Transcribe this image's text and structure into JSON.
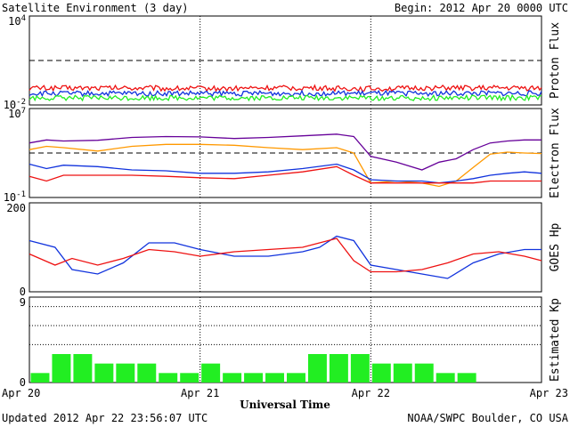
{
  "title": "Satellite Environment (3 day)",
  "begin_label": "Begin:  2012 Apr 20 0000 UTC",
  "xlabel": "Universal Time",
  "updated": "Updated 2012 Apr 22 23:56:07 UTC",
  "credit": "NOAA/SWPC Boulder, CO USA",
  "x_ticks": [
    "Apr 20",
    "Apr 21",
    "Apr 22",
    "Apr 23"
  ],
  "colors": {
    "red": "#ee1111",
    "blue": "#1133dd",
    "green": "#22ee22",
    "orange": "#ff9900",
    "purple": "#660099",
    "bar": "#22ee22"
  },
  "chart_data": [
    {
      "type": "line",
      "panel": "proton",
      "ylabel": "Proton Flux",
      "scale": "log",
      "ylim": [
        0.01,
        10000
      ],
      "ytick_labels": [
        {
          "base": "10",
          "exp": "4"
        },
        {
          "base": "10",
          "exp": "-2"
        }
      ],
      "threshold": 10,
      "x_days": [
        0,
        0.5,
        1,
        1.5,
        2,
        2.5,
        3
      ],
      "series": [
        {
          "color": "red",
          "values": [
            0.14,
            0.14,
            0.13,
            0.14,
            0.13,
            0.14,
            0.14
          ]
        },
        {
          "color": "blue",
          "values": [
            0.06,
            0.06,
            0.06,
            0.06,
            0.06,
            0.06,
            0.06
          ]
        },
        {
          "color": "green",
          "values": [
            0.03,
            0.03,
            0.03,
            0.03,
            0.03,
            0.03,
            0.03
          ]
        }
      ]
    },
    {
      "type": "line",
      "panel": "electron",
      "ylabel": "Electron Flux",
      "scale": "log",
      "ylim": [
        0.1,
        10000000
      ],
      "ytick_labels": [
        {
          "base": "10",
          "exp": "7"
        },
        {
          "base": "10",
          "exp": "-1"
        }
      ],
      "threshold": 1000,
      "x_days": [
        0,
        0.1,
        0.2,
        0.4,
        0.6,
        0.8,
        1,
        1.2,
        1.4,
        1.6,
        1.8,
        1.9,
        2,
        2.15,
        2.3,
        2.4,
        2.5,
        2.6,
        2.7,
        2.8,
        2.9,
        3
      ],
      "series": [
        {
          "color": "purple",
          "values": [
            8000,
            15000,
            12000,
            14000,
            25000,
            30000,
            28000,
            20000,
            25000,
            35000,
            50000,
            30000,
            500,
            150,
            30,
            150,
            300,
            2000,
            8000,
            12000,
            15000,
            15000
          ]
        },
        {
          "color": "orange",
          "values": [
            2000,
            4000,
            3000,
            1500,
            4000,
            6000,
            6000,
            5000,
            3000,
            2000,
            3000,
            1000,
            2,
            3,
            2,
            1,
            3,
            50,
            800,
            1200,
            1000,
            900
          ]
        },
        {
          "color": "blue",
          "values": [
            100,
            40,
            80,
            60,
            30,
            25,
            15,
            15,
            20,
            40,
            100,
            30,
            4,
            3,
            3,
            2,
            3,
            5,
            10,
            15,
            20,
            15
          ]
        },
        {
          "color": "red",
          "values": [
            8,
            3,
            10,
            10,
            10,
            8,
            6,
            5,
            10,
            20,
            60,
            10,
            2,
            2,
            2,
            2,
            2,
            2,
            3,
            3,
            3,
            3
          ]
        }
      ]
    },
    {
      "type": "line",
      "panel": "goes-hp",
      "ylabel": "GOES Hp",
      "scale": "linear",
      "ylim": [
        0,
        200
      ],
      "ytick_labels": [
        "200",
        "0"
      ],
      "x_days": [
        0,
        0.15,
        0.25,
        0.4,
        0.55,
        0.7,
        0.85,
        1,
        1.2,
        1.4,
        1.6,
        1.7,
        1.8,
        1.9,
        2,
        2.15,
        2.3,
        2.45,
        2.6,
        2.75,
        2.9,
        3
      ],
      "series": [
        {
          "color": "blue",
          "values": [
            115,
            100,
            50,
            40,
            65,
            110,
            110,
            95,
            80,
            80,
            90,
            100,
            125,
            115,
            60,
            50,
            40,
            30,
            65,
            85,
            95,
            95
          ]
        },
        {
          "color": "red",
          "values": [
            85,
            60,
            75,
            60,
            75,
            95,
            90,
            80,
            90,
            95,
            100,
            110,
            120,
            70,
            45,
            45,
            50,
            65,
            85,
            90,
            80,
            70
          ]
        }
      ]
    },
    {
      "type": "bar",
      "panel": "kp",
      "ylabel": "Estimated Kp",
      "ylim": [
        0,
        9
      ],
      "ytick_labels": [
        "9",
        "0"
      ],
      "values": [
        1,
        3,
        3,
        2,
        2,
        2,
        1,
        1,
        2,
        1,
        1,
        1,
        1,
        3,
        3,
        3,
        2,
        2,
        2,
        1,
        1,
        0,
        0,
        0
      ]
    }
  ]
}
